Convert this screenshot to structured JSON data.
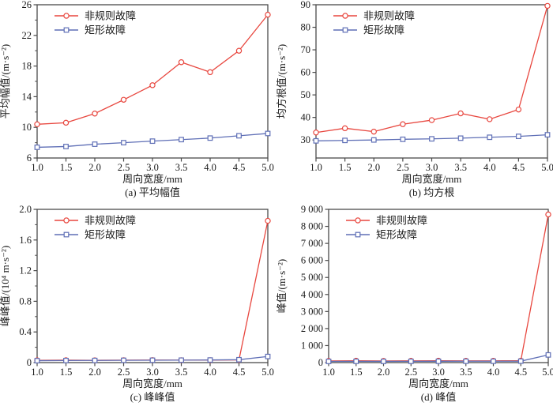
{
  "colors": {
    "irregular": "#e8473f",
    "rectangular": "#5f6fb6",
    "axis": "#4a4a4a",
    "text": "#1a1a1a",
    "background": "#ffffff"
  },
  "chart_data": [
    {
      "id": "a",
      "type": "line",
      "caption": "(a) 平均幅值",
      "xlabel": "周向宽度/mm",
      "ylabel": "平均幅值/(m·s⁻²)",
      "x": [
        1.0,
        1.5,
        2.0,
        2.5,
        3.0,
        3.5,
        4.0,
        4.5,
        5.0
      ],
      "xtick_labels": [
        "1.0",
        "1.5",
        "2.0",
        "2.5",
        "3.0",
        "3.5",
        "4.0",
        "4.5",
        "5.0"
      ],
      "xlim": [
        1.0,
        5.0
      ],
      "ylim": [
        6,
        26
      ],
      "yticks": [
        6,
        10,
        14,
        18,
        22,
        26
      ],
      "ytick_labels": [
        "6",
        "10",
        "14",
        "18",
        "22",
        "26"
      ],
      "minor_yticks": [
        8,
        12,
        16,
        20,
        24
      ],
      "grid": false,
      "legend_position": "top-left",
      "series": [
        {
          "name": "非规则故障",
          "color_key": "irregular",
          "marker": "circle",
          "values": [
            10.4,
            10.6,
            11.8,
            13.6,
            15.5,
            18.5,
            17.2,
            20.0,
            24.7
          ]
        },
        {
          "name": "矩形故障",
          "color_key": "rectangular",
          "marker": "square",
          "values": [
            7.4,
            7.5,
            7.8,
            8.0,
            8.2,
            8.4,
            8.6,
            8.9,
            9.2
          ]
        }
      ]
    },
    {
      "id": "b",
      "type": "line",
      "caption": "(b) 均方根",
      "xlabel": "周向宽度/mm",
      "ylabel": "均方根值/(m·s⁻²)",
      "x": [
        1.0,
        1.5,
        2.0,
        2.5,
        3.0,
        3.5,
        4.0,
        4.5,
        5.0
      ],
      "xtick_labels": [
        "1.0",
        "1.5",
        "2.0",
        "2.5",
        "3.0",
        "3.5",
        "4.0",
        "4.5",
        "5.0"
      ],
      "xlim": [
        1.0,
        5.0
      ],
      "ylim": [
        22,
        90
      ],
      "yticks": [
        30,
        40,
        50,
        60,
        70,
        80,
        90
      ],
      "ytick_labels": [
        "30",
        "40",
        "50",
        "60",
        "70",
        "80",
        "90"
      ],
      "minor_yticks": [],
      "grid": false,
      "legend_position": "top-left",
      "series": [
        {
          "name": "非规则故障",
          "color_key": "irregular",
          "marker": "circle",
          "values": [
            33.3,
            35.2,
            33.7,
            37.0,
            38.8,
            41.8,
            39.2,
            43.5,
            89.5
          ]
        },
        {
          "name": "矩形故障",
          "color_key": "rectangular",
          "marker": "square",
          "values": [
            29.6,
            29.8,
            30.0,
            30.3,
            30.5,
            30.8,
            31.2,
            31.6,
            32.3
          ]
        }
      ]
    },
    {
      "id": "c",
      "type": "line",
      "caption": "(c) 峰峰值",
      "xlabel": "周向宽度/mm",
      "ylabel": "峰峰值/(10⁴ m·s⁻²)",
      "x": [
        1.0,
        1.5,
        2.0,
        2.5,
        3.0,
        3.5,
        4.0,
        4.5,
        5.0
      ],
      "xtick_labels": [
        "1.0",
        "1.5",
        "2.0",
        "2.5",
        "3.0",
        "3.5",
        "4.0",
        "4.5",
        "5.0"
      ],
      "xlim": [
        1.0,
        5.0
      ],
      "ylim": [
        0,
        2.0
      ],
      "yticks": [
        0,
        0.4,
        0.8,
        1.2,
        1.6,
        2.0
      ],
      "ytick_labels": [
        "0",
        "0.4",
        "0.8",
        "1.2",
        "1.6",
        "2.0"
      ],
      "minor_yticks": [
        0.2,
        0.6,
        1.0,
        1.4,
        1.8
      ],
      "grid": false,
      "legend_position": "top-left",
      "series": [
        {
          "name": "非规则故障",
          "color_key": "irregular",
          "marker": "circle",
          "values": [
            0.03,
            0.032,
            0.03,
            0.032,
            0.033,
            0.032,
            0.032,
            0.035,
            1.85
          ]
        },
        {
          "name": "矩形故障",
          "color_key": "rectangular",
          "marker": "square",
          "values": [
            0.025,
            0.027,
            0.028,
            0.03,
            0.031,
            0.032,
            0.034,
            0.038,
            0.08
          ]
        }
      ]
    },
    {
      "id": "d",
      "type": "line",
      "caption": "(d) 峰值",
      "xlabel": "周向宽度/mm",
      "ylabel": "峰值/(m·s⁻²)",
      "x": [
        1.0,
        1.5,
        2.0,
        2.5,
        3.0,
        3.5,
        4.0,
        4.5,
        5.0
      ],
      "xtick_labels": [
        "1.0",
        "1.5",
        "2.0",
        "2.5",
        "3.0",
        "3.5",
        "4.0",
        "4.5",
        "5.0"
      ],
      "xlim": [
        1.0,
        5.0
      ],
      "ylim": [
        0,
        9000
      ],
      "yticks": [
        0,
        1000,
        2000,
        3000,
        4000,
        5000,
        6000,
        7000,
        8000,
        9000
      ],
      "ytick_labels": [
        "0",
        "1 000",
        "2 000",
        "3 000",
        "4 000",
        "5 000",
        "6 000",
        "7 000",
        "8 000",
        "9 000"
      ],
      "minor_yticks": [],
      "grid": false,
      "legend_position": "top-left",
      "series": [
        {
          "name": "非规则故障",
          "color_key": "irregular",
          "marker": "circle",
          "values": [
            100,
            110,
            100,
            105,
            110,
            105,
            105,
            110,
            8700
          ]
        },
        {
          "name": "矩形故障",
          "color_key": "rectangular",
          "marker": "square",
          "values": [
            70,
            75,
            72,
            75,
            78,
            80,
            80,
            85,
            450
          ]
        }
      ]
    }
  ]
}
